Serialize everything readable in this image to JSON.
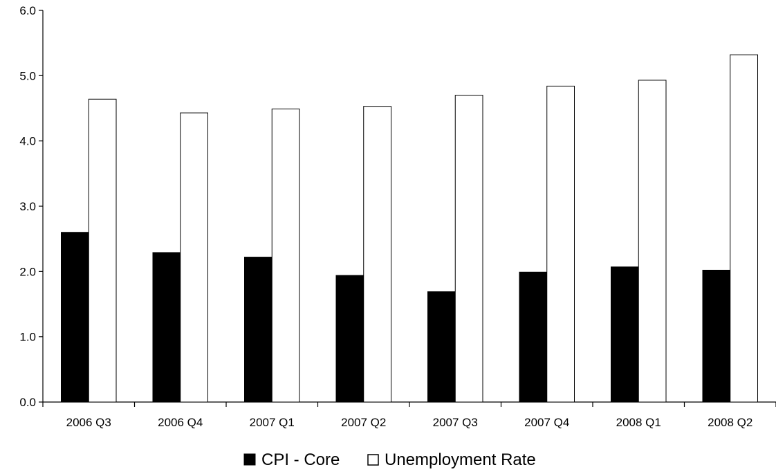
{
  "chart_data": {
    "type": "bar",
    "title": "",
    "xlabel": "",
    "ylabel": "",
    "categories": [
      "2006 Q3",
      "2006 Q4",
      "2007 Q1",
      "2007 Q2",
      "2007 Q3",
      "2007 Q4",
      "2008 Q1",
      "2008 Q2"
    ],
    "ylim": [
      0,
      6
    ],
    "yticks": [
      "0.0",
      "1.0",
      "2.0",
      "3.0",
      "4.0",
      "5.0",
      "6.0"
    ],
    "grid": false,
    "legend_position": "bottom",
    "series": [
      {
        "name": "CPI - Core",
        "color": "#000000",
        "values": [
          2.6,
          2.29,
          2.22,
          1.94,
          1.69,
          1.99,
          2.07,
          2.02
        ]
      },
      {
        "name": "Unemployment Rate",
        "color": "#ffffff",
        "values": [
          4.64,
          4.43,
          4.49,
          4.53,
          4.7,
          4.84,
          4.93,
          5.32
        ]
      }
    ]
  }
}
